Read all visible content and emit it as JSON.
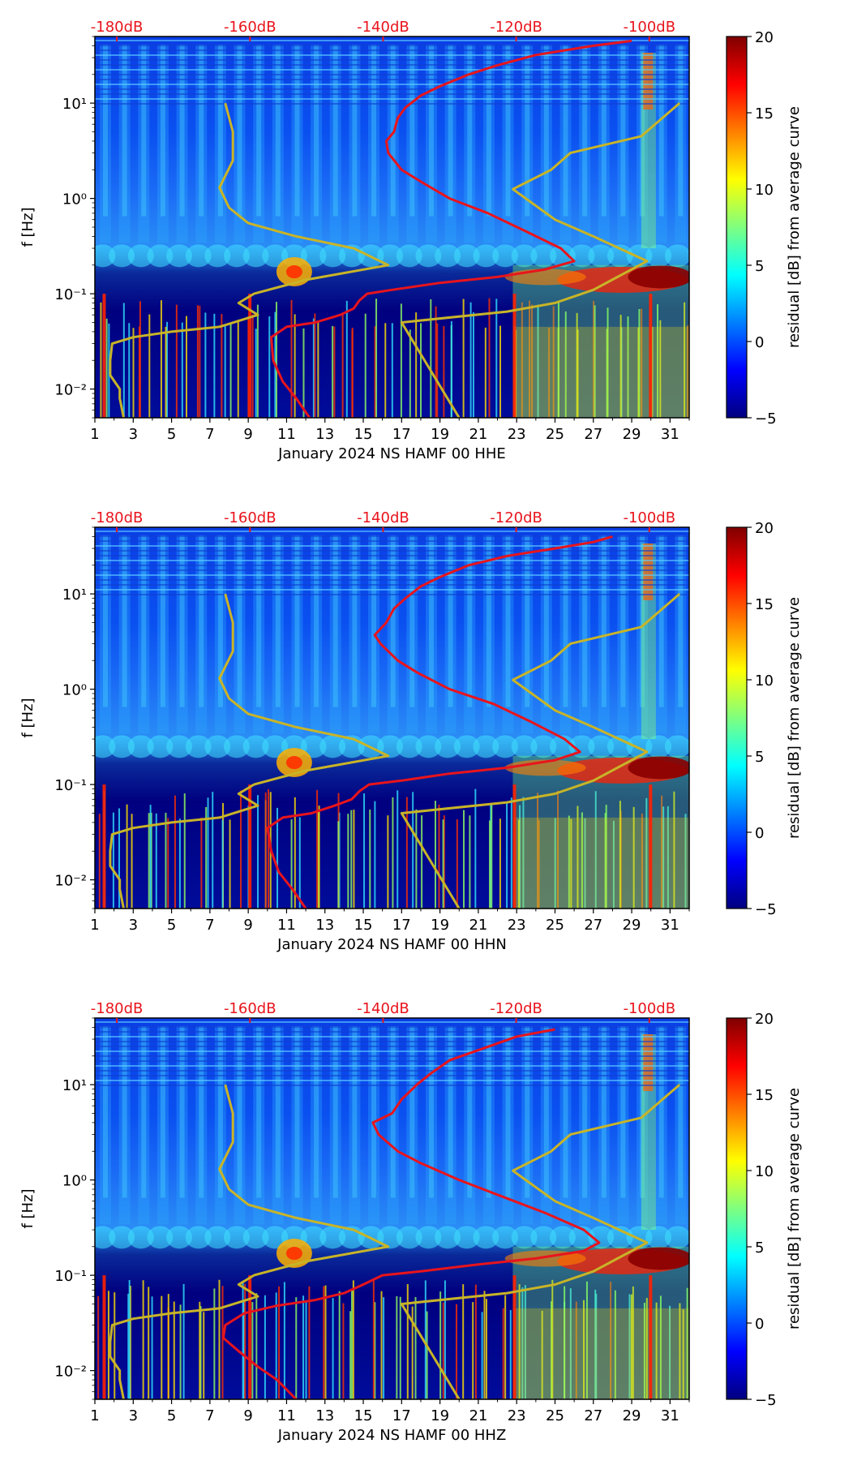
{
  "figure": {
    "colorbar": {
      "label": "residual [dB] from average curve",
      "ticks": [
        -5,
        0,
        5,
        10,
        15,
        20
      ],
      "range": [
        -5,
        20
      ],
      "colormap": "jet"
    },
    "colors": {
      "psd_curve": "#e8141c",
      "noise_model": "#c8b428",
      "top_axis_labels": "#e8141c"
    }
  },
  "chart_data": [
    {
      "type": "heatmap",
      "title": "",
      "xlabel": "January 2024 NS HAMF 00 HHE",
      "ylabel": "f [Hz]",
      "x_ticks": [
        "1",
        "3",
        "5",
        "7",
        "9",
        "11",
        "13",
        "15",
        "17",
        "19",
        "21",
        "23",
        "25",
        "27",
        "29",
        "31"
      ],
      "xlim": [
        1,
        32
      ],
      "y_scale": "log",
      "y_ticks": [
        "10⁻²",
        "10⁻¹",
        "10⁰",
        "10¹"
      ],
      "ylim": [
        0.005,
        50
      ],
      "top_axis_labels": [
        "-180dB",
        "-160dB",
        "-140dB",
        "-120dB",
        "-100dB"
      ],
      "red_curve_ref_db": -175.5,
      "series": [
        {
          "name": "PSD curve (red)",
          "points": [
            [
              12.2,
              0.005
            ],
            [
              11.5,
              0.008
            ],
            [
              10.8,
              0.012
            ],
            [
              10.3,
              0.02
            ],
            [
              10.2,
              0.035
            ],
            [
              11,
              0.045
            ],
            [
              12.5,
              0.05
            ],
            [
              13.8,
              0.06
            ],
            [
              14.5,
              0.07
            ],
            [
              14.8,
              0.085
            ],
            [
              15.2,
              0.1
            ],
            [
              16.5,
              0.11
            ],
            [
              19,
              0.13
            ],
            [
              22,
              0.15
            ],
            [
              24.5,
              0.18
            ],
            [
              26,
              0.22
            ],
            [
              25.3,
              0.3
            ],
            [
              23.5,
              0.45
            ],
            [
              21.5,
              0.7
            ],
            [
              19.5,
              1
            ],
            [
              18,
              1.5
            ],
            [
              17,
              2
            ],
            [
              16.3,
              3
            ],
            [
              16.2,
              4
            ],
            [
              16.6,
              5
            ],
            [
              16.8,
              7
            ],
            [
              17.2,
              9
            ],
            [
              18,
              12
            ],
            [
              19,
              15
            ],
            [
              20.5,
              20
            ],
            [
              22,
              25
            ],
            [
              24,
              32
            ],
            [
              27,
              40
            ],
            [
              29,
              45
            ]
          ]
        },
        {
          "name": "noise model (yellow)",
          "points": [
            [
              2.5,
              0.005
            ],
            [
              2.3,
              0.008
            ],
            [
              2.3,
              0.01
            ],
            [
              1.8,
              0.014
            ],
            [
              1.8,
              0.02
            ],
            [
              1.9,
              0.03
            ],
            [
              3,
              0.035
            ],
            [
              5,
              0.04
            ],
            [
              7.5,
              0.045
            ],
            [
              9.5,
              0.06
            ],
            [
              8.5,
              0.08
            ],
            [
              9.3,
              0.1
            ],
            [
              12,
              0.14
            ],
            [
              16.3,
              0.2
            ],
            [
              14.5,
              0.3
            ],
            [
              11.5,
              0.4
            ],
            [
              9,
              0.55
            ],
            [
              8,
              0.8
            ],
            [
              7.5,
              1.3
            ],
            [
              8.2,
              2.5
            ],
            [
              8.2,
              5
            ],
            [
              7.8,
              10
            ]
          ]
        },
        {
          "name": "noise model (yellow) right",
          "points": [
            [
              20,
              0.005
            ],
            [
              17,
              0.05
            ],
            [
              22.5,
              0.065
            ],
            [
              25,
              0.08
            ],
            [
              27,
              0.11
            ],
            [
              29.8,
              0.22
            ],
            [
              27,
              0.4
            ],
            [
              25,
              0.6
            ],
            [
              22.8,
              1.25
            ],
            [
              24.8,
              2
            ],
            [
              25.8,
              3
            ],
            [
              29.5,
              4.5
            ],
            [
              31.5,
              10
            ]
          ]
        }
      ]
    },
    {
      "type": "heatmap",
      "title": "",
      "xlabel": "January 2024 NS HAMF 00 HHN",
      "ylabel": "f [Hz]",
      "x_ticks": [
        "1",
        "3",
        "5",
        "7",
        "9",
        "11",
        "13",
        "15",
        "17",
        "19",
        "21",
        "23",
        "25",
        "27",
        "29",
        "31"
      ],
      "xlim": [
        1,
        32
      ],
      "y_scale": "log",
      "y_ticks": [
        "10⁻²",
        "10⁻¹",
        "10⁰",
        "10¹"
      ],
      "ylim": [
        0.005,
        50
      ],
      "top_axis_labels": [
        "-180dB",
        "-160dB",
        "-140dB",
        "-120dB",
        "-100dB"
      ],
      "red_curve_ref_db": -175.5,
      "series": [
        {
          "name": "PSD curve (red)",
          "points": [
            [
              12,
              0.005
            ],
            [
              11.3,
              0.008
            ],
            [
              10.6,
              0.012
            ],
            [
              10.2,
              0.02
            ],
            [
              10,
              0.035
            ],
            [
              10.8,
              0.045
            ],
            [
              12.3,
              0.05
            ],
            [
              13.5,
              0.06
            ],
            [
              14.4,
              0.07
            ],
            [
              14.8,
              0.085
            ],
            [
              15.3,
              0.1
            ],
            [
              17,
              0.11
            ],
            [
              19.5,
              0.13
            ],
            [
              22.5,
              0.15
            ],
            [
              25,
              0.18
            ],
            [
              26.3,
              0.22
            ],
            [
              25.5,
              0.3
            ],
            [
              23.8,
              0.45
            ],
            [
              21.8,
              0.7
            ],
            [
              19.5,
              1
            ],
            [
              17.8,
              1.5
            ],
            [
              16.8,
              2
            ],
            [
              15.9,
              3
            ],
            [
              15.6,
              3.7
            ],
            [
              16.2,
              5
            ],
            [
              16.6,
              7
            ],
            [
              17.2,
              9
            ],
            [
              18,
              12
            ],
            [
              19,
              15
            ],
            [
              20.5,
              20
            ],
            [
              22.5,
              25
            ],
            [
              25,
              30
            ],
            [
              27,
              35
            ],
            [
              28,
              40
            ]
          ]
        },
        {
          "name": "noise model (yellow)",
          "points": [
            [
              2.5,
              0.005
            ],
            [
              2.3,
              0.008
            ],
            [
              2.3,
              0.01
            ],
            [
              1.8,
              0.014
            ],
            [
              1.8,
              0.02
            ],
            [
              1.9,
              0.03
            ],
            [
              3,
              0.035
            ],
            [
              5,
              0.04
            ],
            [
              7.5,
              0.045
            ],
            [
              9.5,
              0.06
            ],
            [
              8.5,
              0.08
            ],
            [
              9.3,
              0.1
            ],
            [
              12,
              0.14
            ],
            [
              16.3,
              0.2
            ],
            [
              14.5,
              0.3
            ],
            [
              11.5,
              0.4
            ],
            [
              9,
              0.55
            ],
            [
              8,
              0.8
            ],
            [
              7.5,
              1.3
            ],
            [
              8.2,
              2.5
            ],
            [
              8.2,
              5
            ],
            [
              7.8,
              10
            ]
          ]
        },
        {
          "name": "noise model (yellow) right",
          "points": [
            [
              20,
              0.005
            ],
            [
              17,
              0.05
            ],
            [
              22.5,
              0.065
            ],
            [
              25,
              0.08
            ],
            [
              27,
              0.11
            ],
            [
              29.8,
              0.22
            ],
            [
              27,
              0.4
            ],
            [
              25,
              0.6
            ],
            [
              22.8,
              1.25
            ],
            [
              24.8,
              2
            ],
            [
              25.8,
              3
            ],
            [
              29.5,
              4.5
            ],
            [
              31.5,
              10
            ]
          ]
        }
      ]
    },
    {
      "type": "heatmap",
      "title": "",
      "xlabel": "January 2024 NS HAMF 00 HHZ",
      "ylabel": "f [Hz]",
      "x_ticks": [
        "1",
        "3",
        "5",
        "7",
        "9",
        "11",
        "13",
        "15",
        "17",
        "19",
        "21",
        "23",
        "25",
        "27",
        "29",
        "31"
      ],
      "xlim": [
        1,
        32
      ],
      "y_scale": "log",
      "y_ticks": [
        "10⁻²",
        "10⁻¹",
        "10⁰",
        "10¹"
      ],
      "ylim": [
        0.005,
        50
      ],
      "top_axis_labels": [
        "-180dB",
        "-160dB",
        "-140dB",
        "-120dB",
        "-100dB"
      ],
      "red_curve_ref_db": -175.5,
      "series": [
        {
          "name": "PSD curve (red)",
          "points": [
            [
              11.5,
              0.005
            ],
            [
              10.5,
              0.008
            ],
            [
              9.5,
              0.011
            ],
            [
              8.5,
              0.016
            ],
            [
              7.7,
              0.022
            ],
            [
              7.8,
              0.03
            ],
            [
              8.8,
              0.04
            ],
            [
              10.5,
              0.048
            ],
            [
              12.5,
              0.055
            ],
            [
              14,
              0.065
            ],
            [
              15,
              0.08
            ],
            [
              16,
              0.1
            ],
            [
              18,
              0.11
            ],
            [
              21,
              0.13
            ],
            [
              24,
              0.15
            ],
            [
              26.5,
              0.18
            ],
            [
              27.3,
              0.22
            ],
            [
              26.5,
              0.3
            ],
            [
              24.5,
              0.45
            ],
            [
              22,
              0.7
            ],
            [
              20,
              1
            ],
            [
              18,
              1.5
            ],
            [
              16.8,
              2
            ],
            [
              15.8,
              3
            ],
            [
              15.5,
              4
            ],
            [
              16.5,
              5
            ],
            [
              17,
              7
            ],
            [
              17.8,
              10
            ],
            [
              18.5,
              13
            ],
            [
              19.5,
              18
            ],
            [
              21.5,
              25
            ],
            [
              23,
              32
            ],
            [
              25,
              38
            ]
          ]
        },
        {
          "name": "noise model (yellow)",
          "points": [
            [
              2.5,
              0.005
            ],
            [
              2.3,
              0.008
            ],
            [
              2.3,
              0.01
            ],
            [
              1.8,
              0.014
            ],
            [
              1.8,
              0.02
            ],
            [
              1.9,
              0.03
            ],
            [
              3,
              0.035
            ],
            [
              5,
              0.04
            ],
            [
              7.5,
              0.045
            ],
            [
              9.5,
              0.06
            ],
            [
              8.5,
              0.08
            ],
            [
              9.3,
              0.1
            ],
            [
              12,
              0.14
            ],
            [
              16.3,
              0.2
            ],
            [
              14.5,
              0.3
            ],
            [
              11.5,
              0.4
            ],
            [
              9,
              0.55
            ],
            [
              8,
              0.8
            ],
            [
              7.5,
              1.3
            ],
            [
              8.2,
              2.5
            ],
            [
              8.2,
              5
            ],
            [
              7.8,
              10
            ]
          ]
        },
        {
          "name": "noise model (yellow) right",
          "points": [
            [
              20,
              0.005
            ],
            [
              17,
              0.05
            ],
            [
              22.5,
              0.065
            ],
            [
              25,
              0.08
            ],
            [
              27,
              0.11
            ],
            [
              29.8,
              0.22
            ],
            [
              27,
              0.4
            ],
            [
              25,
              0.6
            ],
            [
              22.8,
              1.25
            ],
            [
              24.8,
              2
            ],
            [
              25.8,
              3
            ],
            [
              29.5,
              4.5
            ],
            [
              31.5,
              10
            ]
          ]
        }
      ]
    }
  ]
}
